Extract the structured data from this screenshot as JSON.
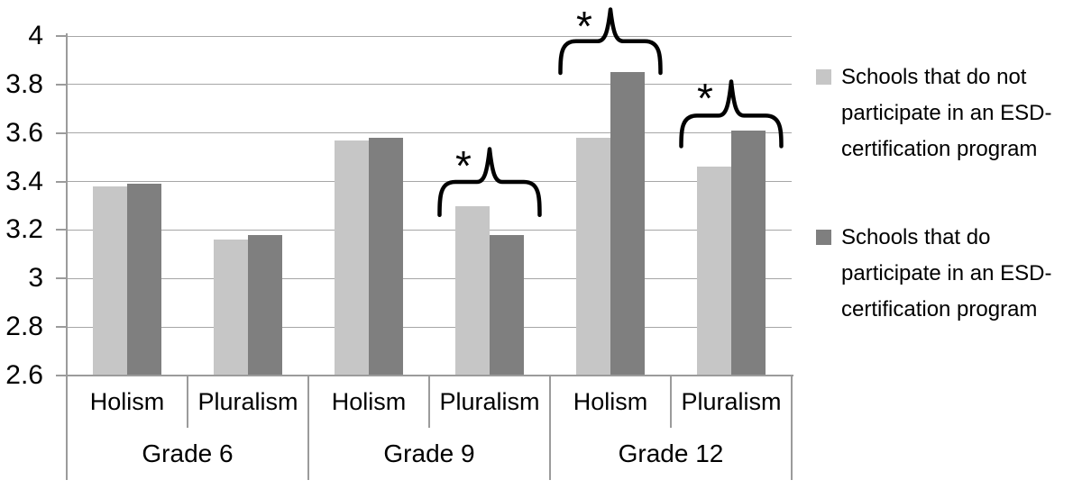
{
  "chart_data": {
    "type": "bar",
    "title": "",
    "xlabel": "",
    "ylabel": "",
    "ylim": [
      2.6,
      4.0
    ],
    "grid": true,
    "legend_position": "right",
    "yticks": [
      {
        "label": "4",
        "value": 4.0
      },
      {
        "label": "3.8",
        "value": 3.8
      },
      {
        "label": "3.6",
        "value": 3.6
      },
      {
        "label": "3.4",
        "value": 3.4
      },
      {
        "label": "3.2",
        "value": 3.2
      },
      {
        "label": "3",
        "value": 3.0
      },
      {
        "label": "2.8",
        "value": 2.8
      },
      {
        "label": "2.6",
        "value": 2.6
      }
    ],
    "groups": [
      {
        "label": "Grade 6",
        "subcategories": [
          "Holism",
          "Pluralism"
        ]
      },
      {
        "label": "Grade 9",
        "subcategories": [
          "Holism",
          "Pluralism"
        ]
      },
      {
        "label": "Grade 12",
        "subcategories": [
          "Holism",
          "Pluralism"
        ]
      }
    ],
    "series": [
      {
        "name": "Schools that do not participate in an ESD-certification program",
        "color": "#c6c6c6",
        "values": [
          3.38,
          3.16,
          3.57,
          3.3,
          3.58,
          3.46
        ]
      },
      {
        "name": "Schools that do participate in an ESD-certification program",
        "color": "#7f7f7f",
        "values": [
          3.39,
          3.18,
          3.58,
          3.18,
          3.85,
          3.61
        ]
      }
    ],
    "legend": [
      {
        "color": "#c6c6c6",
        "lines": [
          "Schools that do not",
          "participate in an ESD-",
          "certification program"
        ]
      },
      {
        "color": "#7f7f7f",
        "lines": [
          "Schools that do",
          "participate in an ESD-",
          "certification program"
        ]
      }
    ],
    "annotations": [
      {
        "symbol": "*",
        "group": 1,
        "sub": 1,
        "bar_v": 3.4,
        "tip_v": 3.545,
        "leg_v": 3.26
      },
      {
        "symbol": "*",
        "group": 2,
        "sub": 0,
        "bar_v": 3.98,
        "tip_v": 4.12,
        "leg_v": 3.845
      },
      {
        "symbol": "*",
        "group": 2,
        "sub": 1,
        "bar_v": 3.67,
        "tip_v": 3.82,
        "leg_v": 3.54
      }
    ],
    "colors": {
      "gridline": "#a6a6a6",
      "axis": "#9b9b9b",
      "annotation": "#000000",
      "text": "#000000"
    }
  }
}
